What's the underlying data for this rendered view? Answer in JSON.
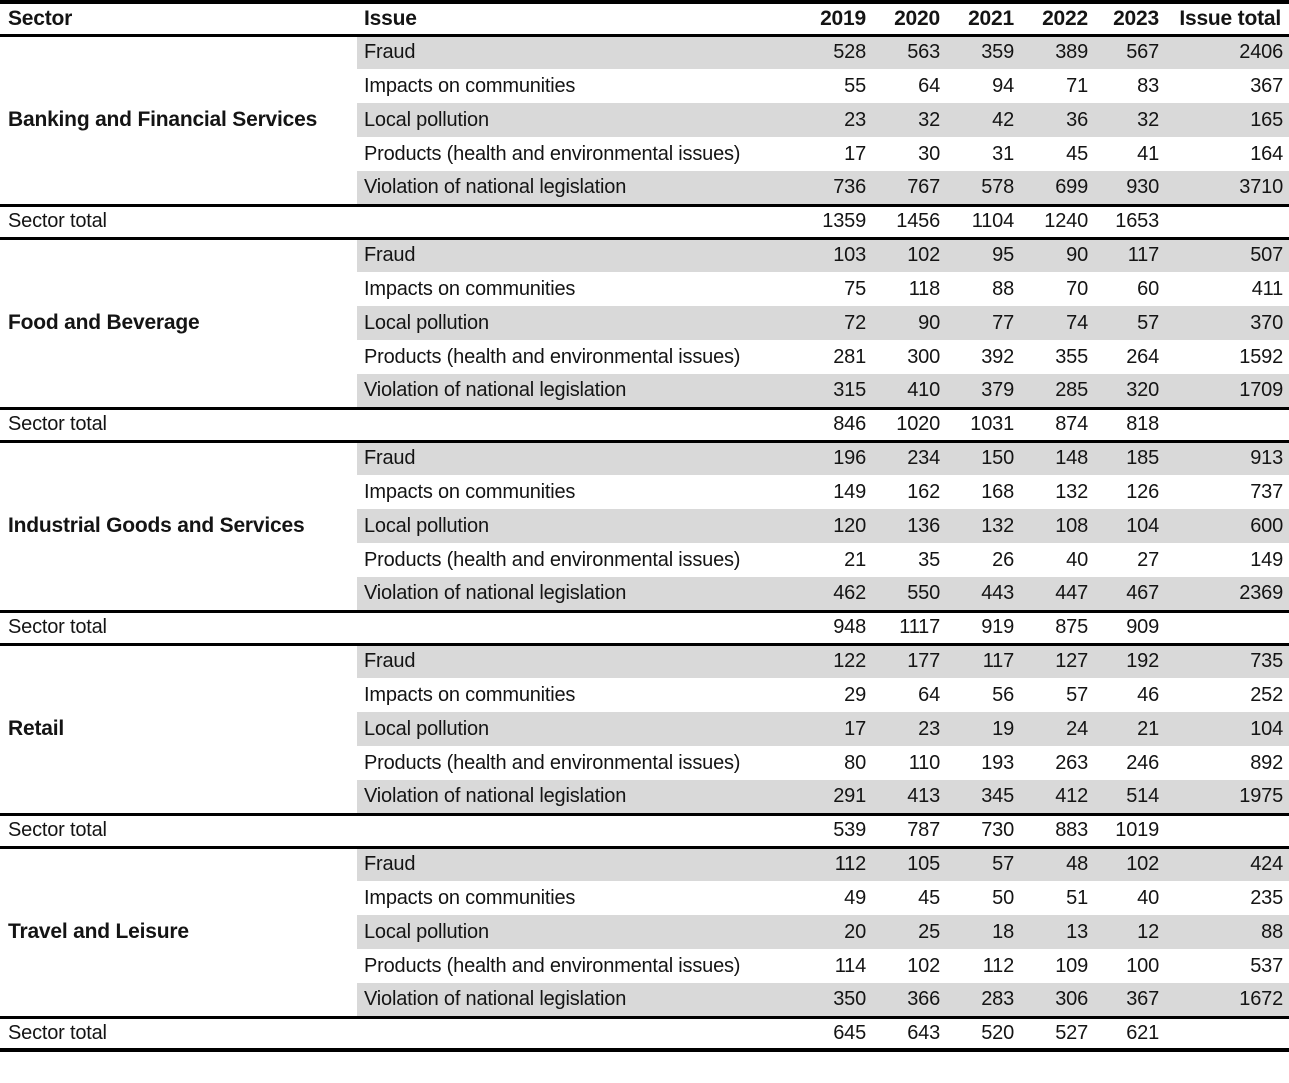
{
  "colors": {
    "row_shade": "#d9d9d9",
    "rule": "#000000",
    "text": "#141414"
  },
  "chart_data": {
    "type": "table",
    "columns": [
      "Sector",
      "Issue",
      "2019",
      "2020",
      "2021",
      "2022",
      "2023",
      "Issue total"
    ],
    "years": [
      "2019",
      "2020",
      "2021",
      "2022",
      "2023"
    ],
    "sector_total_label": "Sector total",
    "layout": {
      "shading": "alternating gray bands on 1st/3rd/5th issue row of each sector block, covering Issue and numeric columns only",
      "rules": "thick black rules at top, below header, above and below each Sector total row, and at bottom",
      "alignment": "sector and issue labels left-aligned; year values and issue totals right-aligned"
    },
    "sectors": [
      {
        "name": "Banking and Financial Services",
        "issues": [
          {
            "issue": "Fraud",
            "values": [
              528,
              563,
              359,
              389,
              567
            ],
            "issue_total": 2406
          },
          {
            "issue": "Impacts on communities",
            "values": [
              55,
              64,
              94,
              71,
              83
            ],
            "issue_total": 367
          },
          {
            "issue": "Local pollution",
            "values": [
              23,
              32,
              42,
              36,
              32
            ],
            "issue_total": 165
          },
          {
            "issue": "Products (health and environmental issues)",
            "values": [
              17,
              30,
              31,
              45,
              41
            ],
            "issue_total": 164
          },
          {
            "issue": "Violation of national legislation",
            "values": [
              736,
              767,
              578,
              699,
              930
            ],
            "issue_total": 3710
          }
        ],
        "sector_totals": [
          1359,
          1456,
          1104,
          1240,
          1653
        ]
      },
      {
        "name": "Food and Beverage",
        "issues": [
          {
            "issue": "Fraud",
            "values": [
              103,
              102,
              95,
              90,
              117
            ],
            "issue_total": 507
          },
          {
            "issue": "Impacts on communities",
            "values": [
              75,
              118,
              88,
              70,
              60
            ],
            "issue_total": 411
          },
          {
            "issue": "Local pollution",
            "values": [
              72,
              90,
              77,
              74,
              57
            ],
            "issue_total": 370
          },
          {
            "issue": "Products (health and environmental issues)",
            "values": [
              281,
              300,
              392,
              355,
              264
            ],
            "issue_total": 1592
          },
          {
            "issue": "Violation of national legislation",
            "values": [
              315,
              410,
              379,
              285,
              320
            ],
            "issue_total": 1709
          }
        ],
        "sector_totals": [
          846,
          1020,
          1031,
          874,
          818
        ]
      },
      {
        "name": "Industrial Goods and Services",
        "issues": [
          {
            "issue": "Fraud",
            "values": [
              196,
              234,
              150,
              148,
              185
            ],
            "issue_total": 913
          },
          {
            "issue": "Impacts on communities",
            "values": [
              149,
              162,
              168,
              132,
              126
            ],
            "issue_total": 737
          },
          {
            "issue": "Local pollution",
            "values": [
              120,
              136,
              132,
              108,
              104
            ],
            "issue_total": 600
          },
          {
            "issue": "Products (health and environmental issues)",
            "values": [
              21,
              35,
              26,
              40,
              27
            ],
            "issue_total": 149
          },
          {
            "issue": "Violation of national legislation",
            "values": [
              462,
              550,
              443,
              447,
              467
            ],
            "issue_total": 2369
          }
        ],
        "sector_totals": [
          948,
          1117,
          919,
          875,
          909
        ]
      },
      {
        "name": "Retail",
        "issues": [
          {
            "issue": "Fraud",
            "values": [
              122,
              177,
              117,
              127,
              192
            ],
            "issue_total": 735
          },
          {
            "issue": "Impacts on communities",
            "values": [
              29,
              64,
              56,
              57,
              46
            ],
            "issue_total": 252
          },
          {
            "issue": "Local pollution",
            "values": [
              17,
              23,
              19,
              24,
              21
            ],
            "issue_total": 104
          },
          {
            "issue": "Products (health and environmental issues)",
            "values": [
              80,
              110,
              193,
              263,
              246
            ],
            "issue_total": 892
          },
          {
            "issue": "Violation of national legislation",
            "values": [
              291,
              413,
              345,
              412,
              514
            ],
            "issue_total": 1975
          }
        ],
        "sector_totals": [
          539,
          787,
          730,
          883,
          1019
        ]
      },
      {
        "name": "Travel and Leisure",
        "issues": [
          {
            "issue": "Fraud",
            "values": [
              112,
              105,
              57,
              48,
              102
            ],
            "issue_total": 424
          },
          {
            "issue": "Impacts on communities",
            "values": [
              49,
              45,
              50,
              51,
              40
            ],
            "issue_total": 235
          },
          {
            "issue": "Local pollution",
            "values": [
              20,
              25,
              18,
              13,
              12
            ],
            "issue_total": 88
          },
          {
            "issue": "Products (health and environmental issues)",
            "values": [
              114,
              102,
              112,
              109,
              100
            ],
            "issue_total": 537
          },
          {
            "issue": "Violation of national legislation",
            "values": [
              350,
              366,
              283,
              306,
              367
            ],
            "issue_total": 1672
          }
        ],
        "sector_totals": [
          645,
          643,
          520,
          527,
          621
        ]
      }
    ]
  }
}
